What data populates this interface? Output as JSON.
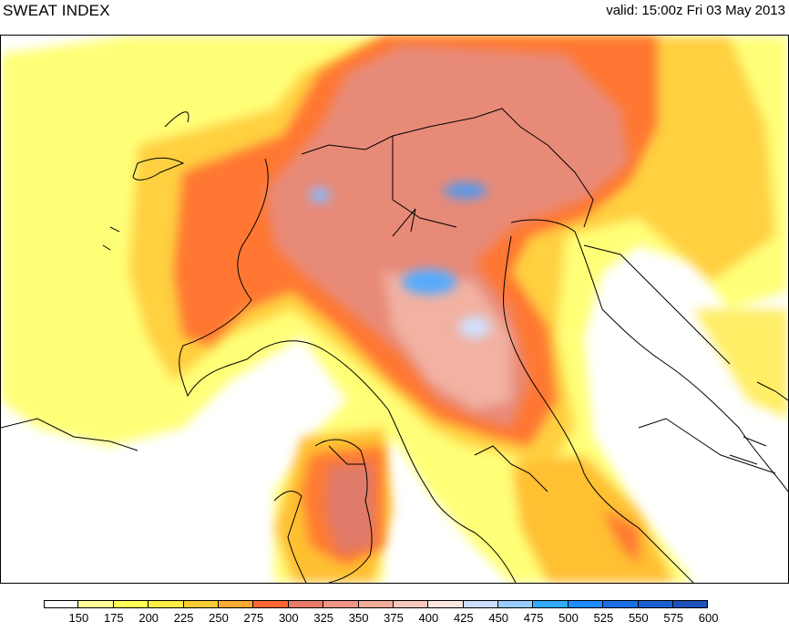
{
  "header": {
    "title": "SWEAT INDEX",
    "valid": "valid: 15:00z Fri 03 May 2013"
  },
  "colorbar": {
    "colors": [
      "#ffffff",
      "#ffff99",
      "#ffff55",
      "#ffee44",
      "#ffcc33",
      "#ffaa33",
      "#ff6633",
      "#e87a6a",
      "#f09585",
      "#f2ad9a",
      "#f6c8bb",
      "#fde8e2",
      "#ccdcff",
      "#99ccff",
      "#33aaff",
      "#1f8cff",
      "#1a6fe6",
      "#1c5fd0",
      "#1f4fb8"
    ],
    "tick_labels": [
      "150",
      "175",
      "200",
      "225",
      "250",
      "275",
      "300",
      "325",
      "350",
      "375",
      "400",
      "425",
      "450",
      "475",
      "500",
      "525",
      "550",
      "575",
      "600"
    ]
  },
  "map_legend_icon": "sweat-index-field"
}
